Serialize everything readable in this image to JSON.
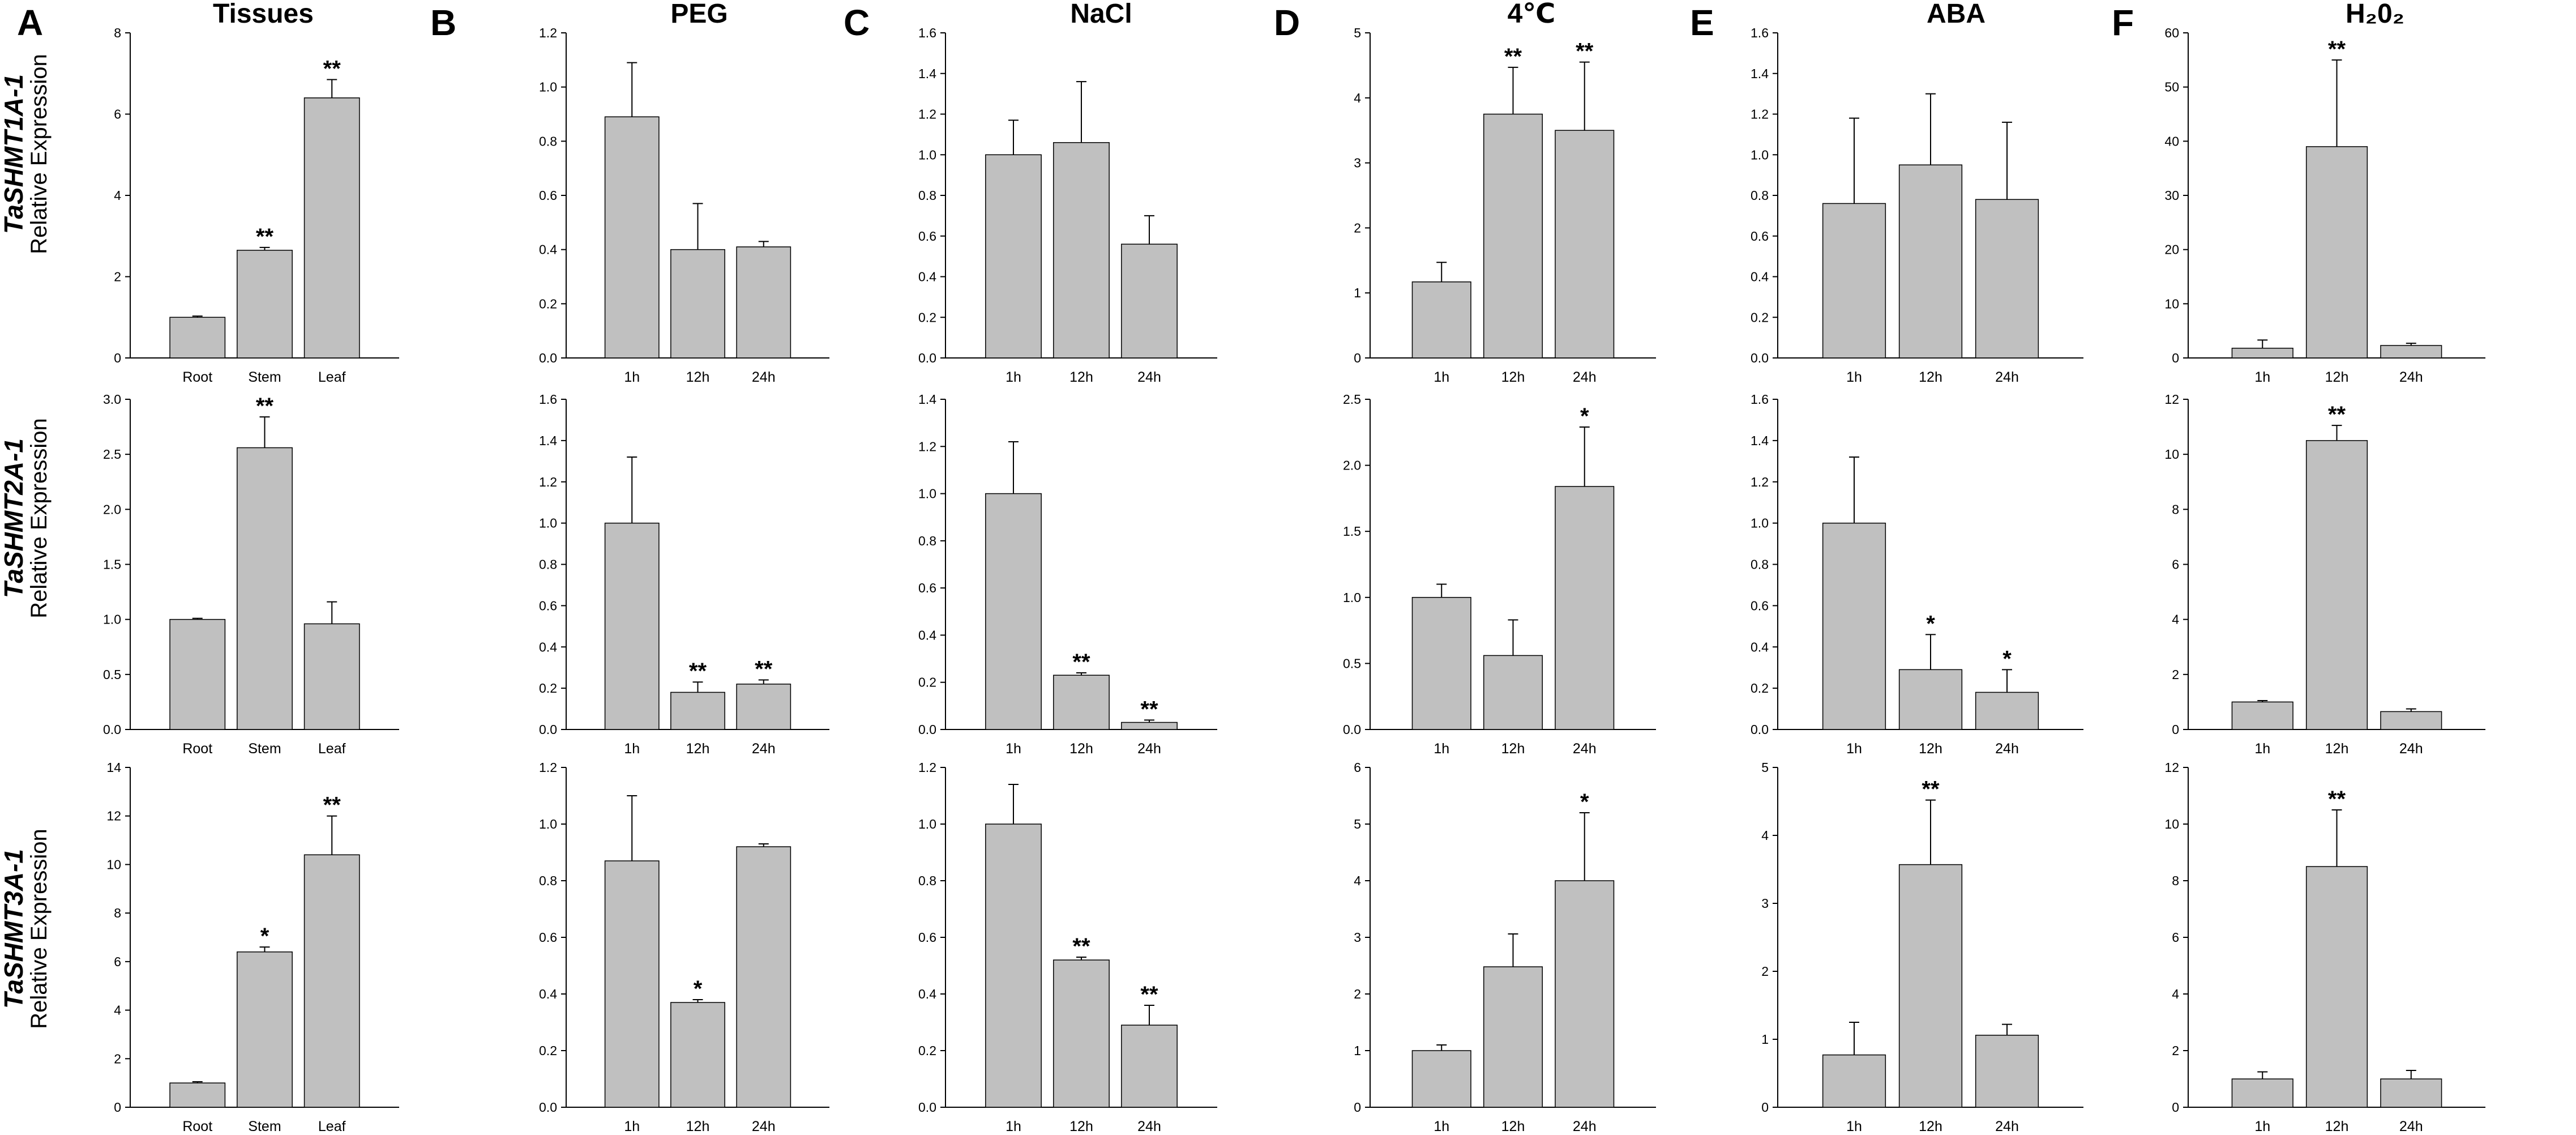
{
  "figure": {
    "y_axis_label": "Relative Expression",
    "genes": [
      "TaSHMT1A-1",
      "TaSHMT2A-1",
      "TaSHMT3A-1"
    ],
    "columns": [
      {
        "letter": "A",
        "title": "Tissues",
        "categories": [
          "Root",
          "Stem",
          "Leaf"
        ]
      },
      {
        "letter": "B",
        "title": "PEG",
        "categories": [
          "1h",
          "12h",
          "24h"
        ]
      },
      {
        "letter": "C",
        "title": "NaCl",
        "categories": [
          "1h",
          "12h",
          "24h"
        ]
      },
      {
        "letter": "D",
        "title": "4℃",
        "categories": [
          "1h",
          "12h",
          "24h"
        ]
      },
      {
        "letter": "E",
        "title": "ABA",
        "categories": [
          "1h",
          "12h",
          "24h"
        ]
      },
      {
        "letter": "F",
        "title": "H₂0₂",
        "categories": [
          "1h",
          "12h",
          "24h"
        ]
      }
    ]
  },
  "colors": {
    "bar_fill": "#c0c0c0",
    "bar_stroke": "#000000",
    "axis": "#000000",
    "text": "#000000"
  },
  "chart_data": [
    {
      "type": "bar",
      "column": "Tissues",
      "gene": "TaSHMT1A-1",
      "categories": [
        "Root",
        "Stem",
        "Leaf"
      ],
      "values": [
        1.0,
        2.65,
        6.4
      ],
      "errors": [
        0.03,
        0.07,
        0.45
      ],
      "significance": [
        "",
        "**",
        "**"
      ],
      "ylim": [
        0,
        8
      ],
      "yticks": [
        0,
        2,
        4,
        6,
        8
      ],
      "ytick_labels": [
        "0",
        "2",
        "4",
        "6",
        "8"
      ]
    },
    {
      "type": "bar",
      "column": "PEG",
      "gene": "TaSHMT1A-1",
      "categories": [
        "1h",
        "12h",
        "24h"
      ],
      "values": [
        0.89,
        0.4,
        0.41
      ],
      "errors": [
        0.2,
        0.17,
        0.02
      ],
      "significance": [
        "",
        "",
        ""
      ],
      "ylim": [
        0,
        1.2
      ],
      "yticks": [
        0,
        0.2,
        0.4,
        0.6,
        0.8,
        1.0,
        1.2
      ],
      "ytick_labels": [
        "0.0",
        "0.2",
        "0.4",
        "0.6",
        "0.8",
        "1.0",
        "1.2"
      ]
    },
    {
      "type": "bar",
      "column": "NaCl",
      "gene": "TaSHMT1A-1",
      "categories": [
        "1h",
        "12h",
        "24h"
      ],
      "values": [
        1.0,
        1.06,
        0.56
      ],
      "errors": [
        0.17,
        0.3,
        0.14
      ],
      "significance": [
        "",
        "",
        ""
      ],
      "ylim": [
        0,
        1.6
      ],
      "yticks": [
        0,
        0.2,
        0.4,
        0.6,
        0.8,
        1.0,
        1.2,
        1.4,
        1.6
      ],
      "ytick_labels": [
        "0.0",
        "0.2",
        "0.4",
        "0.6",
        "0.8",
        "1.0",
        "1.2",
        "1.4",
        "1.6"
      ]
    },
    {
      "type": "bar",
      "column": "4℃",
      "gene": "TaSHMT1A-1",
      "categories": [
        "1h",
        "12h",
        "24h"
      ],
      "values": [
        1.17,
        3.75,
        3.5
      ],
      "errors": [
        0.3,
        0.72,
        1.05
      ],
      "significance": [
        "",
        "**",
        "**"
      ],
      "ylim": [
        0,
        5
      ],
      "yticks": [
        0,
        1,
        2,
        3,
        4,
        5
      ],
      "ytick_labels": [
        "0",
        "1",
        "2",
        "3",
        "4",
        "5"
      ]
    },
    {
      "type": "bar",
      "column": "ABA",
      "gene": "TaSHMT1A-1",
      "categories": [
        "1h",
        "12h",
        "24h"
      ],
      "values": [
        0.76,
        0.95,
        0.78
      ],
      "errors": [
        0.42,
        0.35,
        0.38
      ],
      "significance": [
        "",
        "",
        ""
      ],
      "ylim": [
        0,
        1.6
      ],
      "yticks": [
        0,
        0.2,
        0.4,
        0.6,
        0.8,
        1.0,
        1.2,
        1.4,
        1.6
      ],
      "ytick_labels": [
        "0.0",
        "0.2",
        "0.4",
        "0.6",
        "0.8",
        "1.0",
        "1.2",
        "1.4",
        "1.6"
      ]
    },
    {
      "type": "bar",
      "column": "H₂0₂",
      "gene": "TaSHMT1A-1",
      "categories": [
        "1h",
        "12h",
        "24h"
      ],
      "values": [
        1.8,
        39.0,
        2.3
      ],
      "errors": [
        1.5,
        16.0,
        0.4
      ],
      "significance": [
        "",
        "**",
        ""
      ],
      "ylim": [
        0,
        60
      ],
      "yticks": [
        0,
        10,
        20,
        30,
        40,
        50,
        60
      ],
      "ytick_labels": [
        "0",
        "10",
        "20",
        "30",
        "40",
        "50",
        "60"
      ]
    },
    {
      "type": "bar",
      "column": "Tissues",
      "gene": "TaSHMT2A-1",
      "categories": [
        "Root",
        "Stem",
        "Leaf"
      ],
      "values": [
        1.0,
        2.56,
        0.96
      ],
      "errors": [
        0.01,
        0.28,
        0.2
      ],
      "significance": [
        "",
        "**",
        ""
      ],
      "ylim": [
        0,
        3.0
      ],
      "yticks": [
        0,
        0.5,
        1.0,
        1.5,
        2.0,
        2.5,
        3.0
      ],
      "ytick_labels": [
        "0.0",
        "0.5",
        "1.0",
        "1.5",
        "2.0",
        "2.5",
        "3.0"
      ]
    },
    {
      "type": "bar",
      "column": "PEG",
      "gene": "TaSHMT2A-1",
      "categories": [
        "1h",
        "12h",
        "24h"
      ],
      "values": [
        1.0,
        0.18,
        0.22
      ],
      "errors": [
        0.32,
        0.05,
        0.02
      ],
      "significance": [
        "",
        "**",
        "**"
      ],
      "ylim": [
        0,
        1.6
      ],
      "yticks": [
        0,
        0.2,
        0.4,
        0.6,
        0.8,
        1.0,
        1.2,
        1.4,
        1.6
      ],
      "ytick_labels": [
        "0.0",
        "0.2",
        "0.4",
        "0.6",
        "0.8",
        "1.0",
        "1.2",
        "1.4",
        "1.6"
      ]
    },
    {
      "type": "bar",
      "column": "NaCl",
      "gene": "TaSHMT2A-1",
      "categories": [
        "1h",
        "12h",
        "24h"
      ],
      "values": [
        1.0,
        0.23,
        0.03
      ],
      "errors": [
        0.22,
        0.01,
        0.01
      ],
      "significance": [
        "",
        "**",
        "**"
      ],
      "ylim": [
        0,
        1.4
      ],
      "yticks": [
        0,
        0.2,
        0.4,
        0.6,
        0.8,
        1.0,
        1.2,
        1.4
      ],
      "ytick_labels": [
        "0.0",
        "0.2",
        "0.4",
        "0.6",
        "0.8",
        "1.0",
        "1.2",
        "1.4"
      ]
    },
    {
      "type": "bar",
      "column": "4℃",
      "gene": "TaSHMT2A-1",
      "categories": [
        "1h",
        "12h",
        "24h"
      ],
      "values": [
        1.0,
        0.56,
        1.84
      ],
      "errors": [
        0.1,
        0.27,
        0.45
      ],
      "significance": [
        "",
        "",
        "*"
      ],
      "ylim": [
        0,
        2.5
      ],
      "yticks": [
        0,
        0.5,
        1.0,
        1.5,
        2.0,
        2.5
      ],
      "ytick_labels": [
        "0.0",
        "0.5",
        "1.0",
        "1.5",
        "2.0",
        "2.5"
      ]
    },
    {
      "type": "bar",
      "column": "ABA",
      "gene": "TaSHMT2A-1",
      "categories": [
        "1h",
        "12h",
        "24h"
      ],
      "values": [
        1.0,
        0.29,
        0.18
      ],
      "errors": [
        0.32,
        0.17,
        0.11
      ],
      "significance": [
        "",
        "*",
        "*"
      ],
      "ylim": [
        0,
        1.6
      ],
      "yticks": [
        0,
        0.2,
        0.4,
        0.6,
        0.8,
        1.0,
        1.2,
        1.4,
        1.6
      ],
      "ytick_labels": [
        "0.0",
        "0.2",
        "0.4",
        "0.6",
        "0.8",
        "1.0",
        "1.2",
        "1.4",
        "1.6"
      ]
    },
    {
      "type": "bar",
      "column": "H₂0₂",
      "gene": "TaSHMT2A-1",
      "categories": [
        "1h",
        "12h",
        "24h"
      ],
      "values": [
        1.0,
        10.5,
        0.65
      ],
      "errors": [
        0.05,
        0.55,
        0.1
      ],
      "significance": [
        "",
        "**",
        ""
      ],
      "ylim": [
        0,
        12
      ],
      "yticks": [
        0,
        2,
        4,
        6,
        8,
        10,
        12
      ],
      "ytick_labels": [
        "0",
        "2",
        "4",
        "6",
        "8",
        "10",
        "12"
      ]
    },
    {
      "type": "bar",
      "column": "Tissues",
      "gene": "TaSHMT3A-1",
      "categories": [
        "Root",
        "Stem",
        "Leaf"
      ],
      "values": [
        1.0,
        6.4,
        10.4
      ],
      "errors": [
        0.05,
        0.2,
        1.6
      ],
      "significance": [
        "",
        "*",
        "**"
      ],
      "ylim": [
        0,
        14
      ],
      "yticks": [
        0,
        2,
        4,
        6,
        8,
        10,
        12,
        14
      ],
      "ytick_labels": [
        "0",
        "2",
        "4",
        "6",
        "8",
        "10",
        "12",
        "14"
      ]
    },
    {
      "type": "bar",
      "column": "PEG",
      "gene": "TaSHMT3A-1",
      "categories": [
        "1h",
        "12h",
        "24h"
      ],
      "values": [
        0.87,
        0.37,
        0.92
      ],
      "errors": [
        0.23,
        0.01,
        0.01
      ],
      "significance": [
        "",
        "*",
        ""
      ],
      "ylim": [
        0,
        1.2
      ],
      "yticks": [
        0,
        0.2,
        0.4,
        0.6,
        0.8,
        1.0,
        1.2
      ],
      "ytick_labels": [
        "0.0",
        "0.2",
        "0.4",
        "0.6",
        "0.8",
        "1.0",
        "1.2"
      ]
    },
    {
      "type": "bar",
      "column": "NaCl",
      "gene": "TaSHMT3A-1",
      "categories": [
        "1h",
        "12h",
        "24h"
      ],
      "values": [
        1.0,
        0.52,
        0.29
      ],
      "errors": [
        0.14,
        0.01,
        0.07
      ],
      "significance": [
        "",
        "**",
        "**"
      ],
      "ylim": [
        0,
        1.2
      ],
      "yticks": [
        0,
        0.2,
        0.4,
        0.6,
        0.8,
        1.0,
        1.2
      ],
      "ytick_labels": [
        "0.0",
        "0.2",
        "0.4",
        "0.6",
        "0.8",
        "1.0",
        "1.2"
      ]
    },
    {
      "type": "bar",
      "column": "4℃",
      "gene": "TaSHMT3A-1",
      "categories": [
        "1h",
        "12h",
        "24h"
      ],
      "values": [
        1.0,
        2.48,
        4.0
      ],
      "errors": [
        0.1,
        0.58,
        1.2
      ],
      "significance": [
        "",
        "",
        "*"
      ],
      "ylim": [
        0,
        6
      ],
      "yticks": [
        0,
        1,
        2,
        3,
        4,
        5,
        6
      ],
      "ytick_labels": [
        "0",
        "1",
        "2",
        "3",
        "4",
        "5",
        "6"
      ]
    },
    {
      "type": "bar",
      "column": "ABA",
      "gene": "TaSHMT3A-1",
      "categories": [
        "1h",
        "12h",
        "24h"
      ],
      "values": [
        0.77,
        3.57,
        1.06
      ],
      "errors": [
        0.48,
        0.95,
        0.16
      ],
      "significance": [
        "",
        "**",
        ""
      ],
      "ylim": [
        0,
        5
      ],
      "yticks": [
        0,
        1,
        2,
        3,
        4,
        5
      ],
      "ytick_labels": [
        "0",
        "1",
        "2",
        "3",
        "4",
        "5"
      ]
    },
    {
      "type": "bar",
      "column": "H₂0₂",
      "gene": "TaSHMT3A-1",
      "categories": [
        "1h",
        "12h",
        "24h"
      ],
      "values": [
        1.0,
        8.5,
        1.0
      ],
      "errors": [
        0.25,
        2.0,
        0.3
      ],
      "significance": [
        "",
        "**",
        ""
      ],
      "ylim": [
        0,
        12
      ],
      "yticks": [
        0,
        2,
        4,
        6,
        8,
        10,
        12
      ],
      "ytick_labels": [
        "0",
        "2",
        "4",
        "6",
        "8",
        "10",
        "12"
      ]
    }
  ]
}
